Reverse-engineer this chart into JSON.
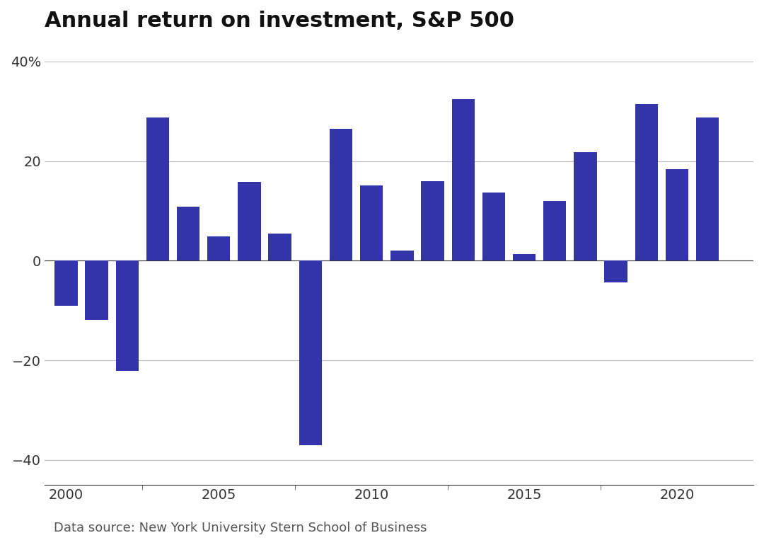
{
  "years": [
    2000,
    2001,
    2002,
    2003,
    2004,
    2005,
    2006,
    2007,
    2008,
    2009,
    2010,
    2011,
    2012,
    2013,
    2014,
    2015,
    2016,
    2017,
    2018,
    2019,
    2020,
    2021
  ],
  "returns": [
    -9.1,
    -11.9,
    -22.1,
    28.7,
    10.9,
    4.9,
    15.8,
    5.5,
    -37.0,
    26.5,
    15.1,
    2.1,
    16.0,
    32.4,
    13.7,
    1.4,
    12.0,
    21.8,
    -4.4,
    31.5,
    18.4,
    28.7
  ],
  "bar_color": "#3333aa",
  "title": "Annual return on investment, S&P 500",
  "title_fontsize": 22,
  "title_fontweight": "bold",
  "ylabel_40": "40%",
  "ylabel_20": "20",
  "ylabel_0": "0",
  "ylabel_m20": "−20",
  "ylabel_m40": "−40",
  "yticks": [
    40,
    20,
    0,
    -20,
    -40
  ],
  "ytick_labels": [
    "40%",
    "20",
    "0",
    "−20",
    "−40"
  ],
  "ylim": [
    -45,
    44
  ],
  "xlim": [
    1999.3,
    2022.5
  ],
  "xticks": [
    2000,
    2005,
    2010,
    2015,
    2020
  ],
  "source_text": "Data source: New York University Stern School of Business",
  "source_fontsize": 13,
  "background_color": "#ffffff",
  "bar_width": 0.75
}
